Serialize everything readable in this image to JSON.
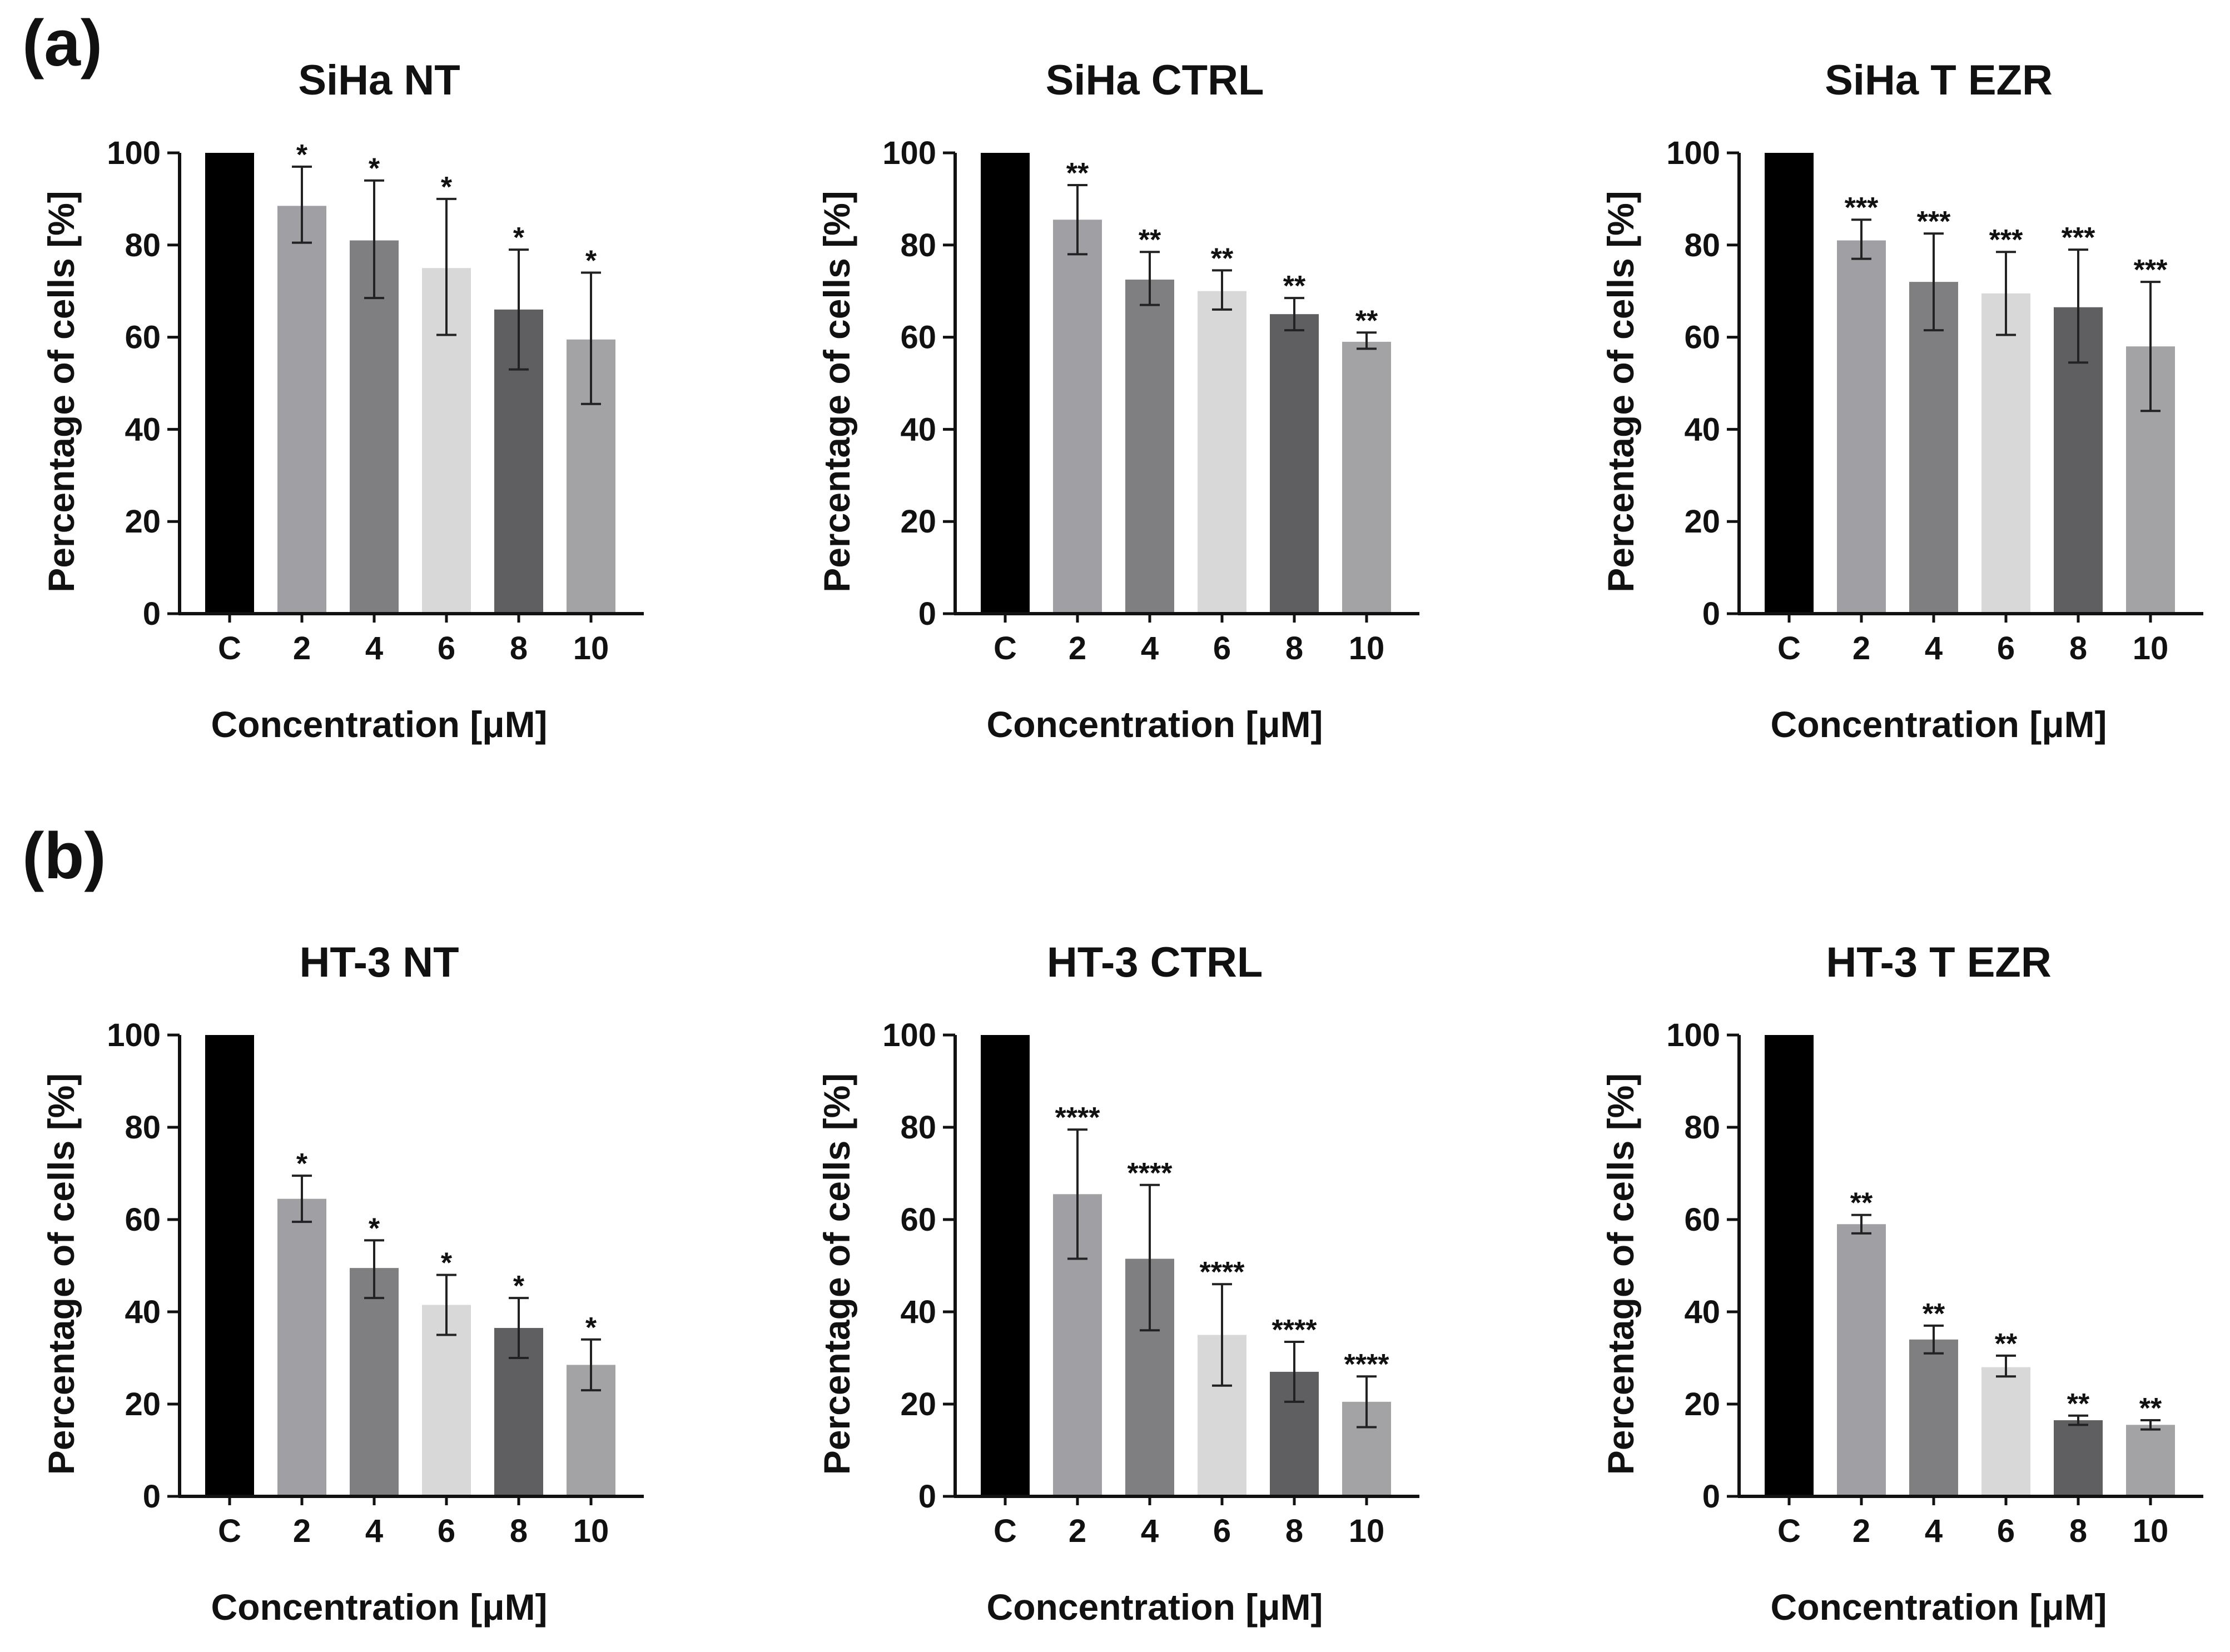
{
  "panel_labels": [
    "(a)",
    "(b)"
  ],
  "colors": {
    "C": "#000000",
    "2": "#a0a0a4",
    "4": "#7f7f82",
    "6": "#d8d8d8",
    "8": "#5f5f62",
    "10": "#a3a3a6",
    "axis": "#111111",
    "error_bar": "#222222"
  },
  "chart_data": [
    {
      "type": "bar",
      "panel": "(a)",
      "title": "SiHa NT",
      "categories": [
        "C",
        "2",
        "4",
        "6",
        "8",
        "10"
      ],
      "values": [
        100,
        88.5,
        81,
        75,
        66,
        59.5
      ],
      "error_low": [
        0,
        80.5,
        68.5,
        60.5,
        53,
        45.5
      ],
      "error_high": [
        0,
        97,
        94,
        90,
        79,
        74
      ],
      "significance": [
        "",
        "*",
        "*",
        "*",
        "*",
        "*"
      ],
      "xlabel": "Concentration [μM]",
      "ylabel": "Percentage of cells [%]",
      "yticks": [
        "0",
        "20",
        "40",
        "60",
        "80",
        "100"
      ],
      "ylim": [
        0,
        100
      ]
    },
    {
      "type": "bar",
      "panel": "(a)",
      "title": "SiHa CTRL",
      "categories": [
        "C",
        "2",
        "4",
        "6",
        "8",
        "10"
      ],
      "values": [
        100,
        85.5,
        72.5,
        70,
        65,
        59
      ],
      "error_low": [
        0,
        78,
        67,
        66,
        61.5,
        57.5
      ],
      "error_high": [
        0,
        93,
        78.5,
        74.5,
        68.5,
        61
      ],
      "significance": [
        "",
        "**",
        "**",
        "**",
        "**",
        "**"
      ],
      "xlabel": "Concentration [μM]",
      "ylabel": "Percentage of cells [%]",
      "yticks": [
        "0",
        "20",
        "40",
        "60",
        "80",
        "100"
      ],
      "ylim": [
        0,
        100
      ]
    },
    {
      "type": "bar",
      "panel": "(a)",
      "title": "SiHa T EZR",
      "categories": [
        "C",
        "2",
        "4",
        "6",
        "8",
        "10"
      ],
      "values": [
        100,
        81,
        72,
        69.5,
        66.5,
        58
      ],
      "error_low": [
        0,
        77,
        61.5,
        60.5,
        54.5,
        44
      ],
      "error_high": [
        0,
        85.5,
        82.5,
        78.5,
        79,
        72
      ],
      "significance": [
        "",
        "***",
        "***",
        "***",
        "***",
        "***"
      ],
      "xlabel": "Concentration [μM]",
      "ylabel": "Percentage of cells [%]",
      "yticks": [
        "0",
        "20",
        "40",
        "60",
        "80",
        "100"
      ],
      "ylim": [
        0,
        100
      ]
    },
    {
      "type": "bar",
      "panel": "(b)",
      "title": "HT-3 NT",
      "categories": [
        "C",
        "2",
        "4",
        "6",
        "8",
        "10"
      ],
      "values": [
        100,
        64.5,
        49.5,
        41.5,
        36.5,
        28.5
      ],
      "error_low": [
        0,
        59.5,
        43,
        35,
        30,
        23
      ],
      "error_high": [
        0,
        69.5,
        55.5,
        48,
        43,
        34
      ],
      "significance": [
        "",
        "*",
        "*",
        "*",
        "*",
        "*"
      ],
      "xlabel": "Concentration [μM]",
      "ylabel": "Percentage of cells [%]",
      "yticks": [
        "0",
        "20",
        "40",
        "60",
        "80",
        "100"
      ],
      "ylim": [
        0,
        100
      ]
    },
    {
      "type": "bar",
      "panel": "(b)",
      "title": "HT-3 CTRL",
      "categories": [
        "C",
        "2",
        "4",
        "6",
        "8",
        "10"
      ],
      "values": [
        100,
        65.5,
        51.5,
        35,
        27,
        20.5
      ],
      "error_low": [
        0,
        51.5,
        36,
        24,
        20.5,
        15
      ],
      "error_high": [
        0,
        79.5,
        67.5,
        46,
        33.5,
        26
      ],
      "significance": [
        "",
        "****",
        "****",
        "****",
        "****",
        "****"
      ],
      "xlabel": "Concentration [μM]",
      "ylabel": "Percentage of cells [%]",
      "yticks": [
        "0",
        "20",
        "40",
        "60",
        "80",
        "100"
      ],
      "ylim": [
        0,
        100
      ]
    },
    {
      "type": "bar",
      "panel": "(b)",
      "title": "HT-3 T EZR",
      "categories": [
        "C",
        "2",
        "4",
        "6",
        "8",
        "10"
      ],
      "values": [
        100,
        59,
        34,
        28,
        16.5,
        15.5
      ],
      "error_low": [
        0,
        57,
        31,
        26,
        15.5,
        14.5
      ],
      "error_high": [
        0,
        61,
        37,
        30.5,
        17.5,
        16.5
      ],
      "significance": [
        "",
        "**",
        "**",
        "**",
        "**",
        "**"
      ],
      "xlabel": "Concentration [μM]",
      "ylabel": "Percentage of cells [%]",
      "yticks": [
        "0",
        "20",
        "40",
        "60",
        "80",
        "100"
      ],
      "ylim": [
        0,
        100
      ]
    }
  ]
}
